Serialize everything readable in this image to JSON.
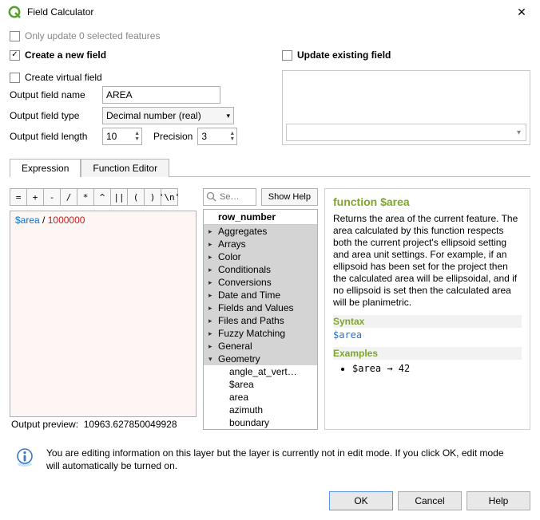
{
  "window": {
    "title": "Field Calculator"
  },
  "top": {
    "only_update_label": "Only update 0 selected features",
    "only_update_checked": false,
    "only_update_disabled": true
  },
  "left": {
    "create_field_label": "Create a new field",
    "create_field_checked": true,
    "virtual_label": "Create virtual field",
    "virtual_checked": false,
    "out_name_label": "Output field name",
    "out_name_value": "AREA",
    "out_type_label": "Output field type",
    "out_type_value": "Decimal number (real)",
    "out_len_label": "Output field length",
    "out_len_value": "10",
    "precision_label": "Precision",
    "precision_value": "3"
  },
  "right": {
    "update_label": "Update existing field",
    "update_checked": false
  },
  "tabs": {
    "expression": "Expression",
    "function_editor": "Function Editor",
    "active": "expression"
  },
  "operators": [
    "=",
    "+",
    "-",
    "/",
    "*",
    "^",
    "||",
    "(",
    ")",
    "'\\n'"
  ],
  "editor": {
    "keyword": "$area",
    "rest": " / ",
    "number": "1000000"
  },
  "search": {
    "placeholder": "Se…"
  },
  "show_help_label": "Show Help",
  "tree": {
    "header": "row_number",
    "groups": [
      {
        "label": "Aggregates",
        "expanded": false
      },
      {
        "label": "Arrays",
        "expanded": false
      },
      {
        "label": "Color",
        "expanded": false
      },
      {
        "label": "Conditionals",
        "expanded": false
      },
      {
        "label": "Conversions",
        "expanded": false
      },
      {
        "label": "Date and Time",
        "expanded": false
      },
      {
        "label": "Fields and Values",
        "expanded": false
      },
      {
        "label": "Files and Paths",
        "expanded": false
      },
      {
        "label": "Fuzzy Matching",
        "expanded": false
      },
      {
        "label": "General",
        "expanded": false
      },
      {
        "label": "Geometry",
        "expanded": true
      }
    ],
    "subitems": [
      "angle_at_vert…",
      "$area",
      "area",
      "azimuth",
      "boundary"
    ]
  },
  "help": {
    "title": "function $area",
    "desc": "Returns the area of the current feature. The area calculated by this function respects both the current project's ellipsoid setting and area unit settings. For example, if an ellipsoid has been set for the project then the calculated area will be ellipsoidal, and if no ellipsoid is set then the calculated area will be planimetric.",
    "syntax_head": "Syntax",
    "syntax": "$area",
    "examples_head": "Examples",
    "example": "$area → 42"
  },
  "preview": {
    "label": "Output preview:",
    "value": "10963.627850049928"
  },
  "info": {
    "text": "You are editing information on this layer but the layer is currently not in edit mode. If you click OK, edit mode will automatically be turned on."
  },
  "buttons": {
    "ok": "OK",
    "cancel": "Cancel",
    "help": "Help"
  },
  "colors": {
    "accent": "#7fa52b",
    "link": "#2a6fc9",
    "editor_bg": "#fdf6f4",
    "gray": "#d4d4d4"
  }
}
